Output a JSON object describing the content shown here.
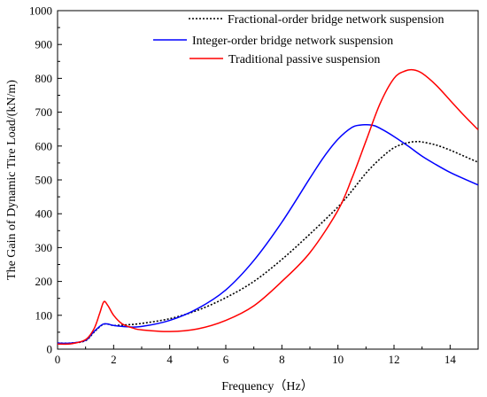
{
  "chart_data": {
    "type": "line",
    "title": "",
    "xlabel": "Frequency（Hz）",
    "ylabel": "The Gain of Dynamic Tire Load/(kN/m)",
    "xlim": [
      0,
      15
    ],
    "ylim": [
      0,
      1000
    ],
    "xticks": [
      0,
      2,
      4,
      6,
      8,
      10,
      12,
      14
    ],
    "yticks": [
      0,
      100,
      200,
      300,
      400,
      500,
      600,
      700,
      800,
      900,
      1000
    ],
    "grid": false,
    "legend_position": "top-right",
    "series": [
      {
        "name": "Fractional-order bridge network suspension",
        "color": "#000000",
        "dash": "dotted",
        "x": [
          0,
          0.5,
          1.0,
          1.3,
          1.6,
          1.8,
          2.0,
          2.5,
          3.0,
          4.0,
          5.0,
          6.0,
          7.0,
          8.0,
          9.0,
          10.0,
          10.5,
          11.0,
          11.5,
          12.0,
          12.5,
          12.8,
          13.0,
          13.5,
          14.0,
          14.5,
          15.0
        ],
        "y": [
          18,
          18,
          25,
          50,
          72,
          74,
          70,
          72,
          76,
          90,
          115,
          152,
          200,
          265,
          340,
          420,
          468,
          520,
          562,
          595,
          610,
          613,
          612,
          603,
          588,
          570,
          552
        ]
      },
      {
        "name": "Integer-order bridge network suspension",
        "color": "#0000ff",
        "dash": "solid",
        "x": [
          0,
          0.5,
          1.0,
          1.3,
          1.6,
          1.8,
          2.0,
          2.5,
          3.0,
          4.0,
          5.0,
          6.0,
          7.0,
          8.0,
          9.0,
          9.5,
          10.0,
          10.5,
          10.8,
          11.0,
          11.3,
          11.6,
          12.0,
          12.5,
          13.0,
          13.5,
          14.0,
          14.5,
          15.0
        ],
        "y": [
          18,
          18,
          26,
          52,
          73,
          74,
          70,
          66,
          67,
          85,
          120,
          175,
          262,
          375,
          505,
          568,
          620,
          655,
          662,
          663,
          660,
          648,
          628,
          600,
          570,
          545,
          522,
          503,
          485
        ]
      },
      {
        "name": "Traditional passive suspension",
        "color": "#ff0000",
        "dash": "solid",
        "x": [
          0,
          0.5,
          1.0,
          1.3,
          1.5,
          1.65,
          1.8,
          2.0,
          2.3,
          2.7,
          3.0,
          4.0,
          5.0,
          6.0,
          7.0,
          8.0,
          9.0,
          10.0,
          10.5,
          11.0,
          11.5,
          12.0,
          12.4,
          12.7,
          13.0,
          13.5,
          14.0,
          14.5,
          15.0
        ],
        "y": [
          15,
          16,
          28,
          60,
          105,
          140,
          128,
          100,
          75,
          62,
          57,
          52,
          60,
          85,
          128,
          200,
          285,
          410,
          505,
          615,
          725,
          800,
          822,
          825,
          815,
          780,
          735,
          690,
          648
        ]
      }
    ]
  }
}
